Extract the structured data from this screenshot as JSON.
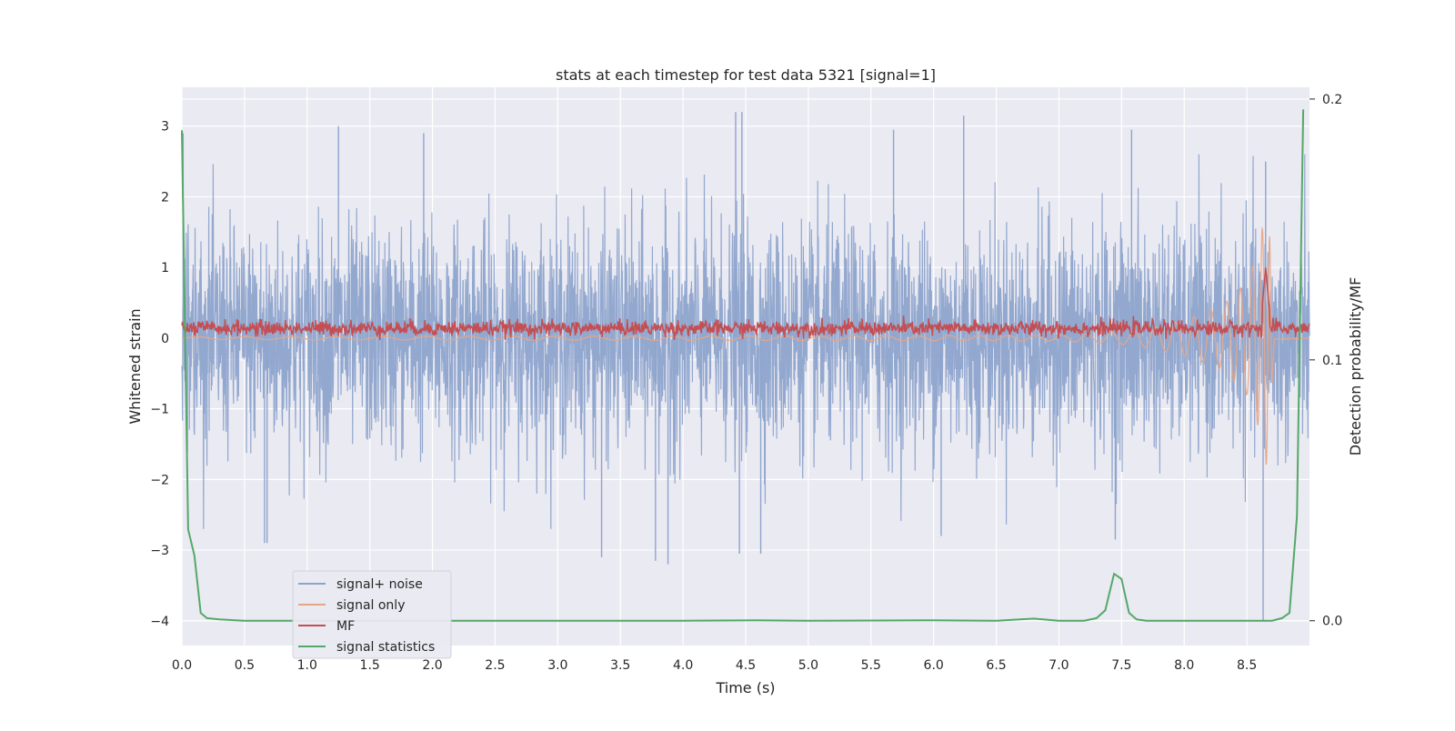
{
  "chart_data": {
    "type": "line",
    "title": "stats at each timestep for test data 5321 [signal=1]",
    "xlabel": "Time (s)",
    "ylabel": "Whitened strain",
    "y2label": "Detection probability/MF",
    "xlim": [
      0,
      9
    ],
    "ylim": [
      -4.35,
      3.55
    ],
    "y2lim": [
      -0.0095,
      0.2045
    ],
    "xticks": [
      "0.0",
      "0.5",
      "1.0",
      "1.5",
      "2.0",
      "2.5",
      "3.0",
      "3.5",
      "4.0",
      "4.5",
      "5.0",
      "5.5",
      "6.0",
      "6.5",
      "7.0",
      "7.5",
      "8.0",
      "8.5"
    ],
    "yticks": [
      "3",
      "2",
      "1",
      "0",
      "−1",
      "−2",
      "−3",
      "−4"
    ],
    "y2ticks": [
      "0.2",
      "0.1",
      "0.0"
    ],
    "grid": true,
    "legend_position": "lower-left",
    "colors": {
      "noise": "#8ea4cc",
      "signal": "#e8a584",
      "mf": "#c44e52",
      "stats": "#55a868",
      "background": "#eaeaf2"
    },
    "series": [
      {
        "name": "signal+ noise",
        "axis": "left",
        "description": "whitened strain noise, amplitude roughly +/-2 with spikes to +/-3.2",
        "peaks_x": [
          0.01,
          0.66,
          0.68,
          1.25,
          1.93,
          3.35,
          3.78,
          3.88,
          4.42,
          4.45,
          4.47,
          4.62,
          5.68,
          6.06,
          6.24,
          7.45,
          7.58,
          8.63,
          8.65
        ],
        "peaks_y": [
          2.9,
          -2.9,
          -2.9,
          3.0,
          2.9,
          -3.1,
          -3.15,
          -3.2,
          3.2,
          -3.05,
          3.2,
          -3.05,
          2.95,
          -2.8,
          3.15,
          -2.85,
          2.95,
          -4.0,
          2.5
        ]
      },
      {
        "name": "signal only",
        "axis": "left",
        "description": "chirp signal growing in amplitude near merger",
        "x": [
          0.0,
          7.0,
          7.6,
          8.0,
          8.3,
          8.5,
          8.6,
          8.65,
          8.68,
          8.72,
          9.0
        ],
        "envelope": [
          0.02,
          0.04,
          0.1,
          0.25,
          0.45,
          0.8,
          1.3,
          1.85,
          1.5,
          0.02,
          0.0
        ]
      },
      {
        "name": "MF",
        "axis": "left",
        "description": "matched filter output fluctuating around 0.1-0.2",
        "mean": 0.14,
        "spread": 0.12,
        "peak_x": 8.65,
        "peak_y": 1.0
      },
      {
        "name": "signal statistics",
        "axis": "right",
        "x": [
          0.0,
          0.05,
          0.1,
          0.15,
          0.2,
          0.3,
          0.5,
          1.0,
          2.0,
          3.0,
          4.0,
          4.6,
          5.0,
          6.0,
          6.5,
          6.8,
          7.0,
          7.2,
          7.3,
          7.37,
          7.44,
          7.5,
          7.56,
          7.62,
          7.7,
          8.0,
          8.5,
          8.7,
          8.78,
          8.84,
          8.9,
          8.95
        ],
        "y": [
          0.188,
          0.035,
          0.025,
          0.003,
          0.001,
          0.0005,
          0.0,
          0.0,
          0.0,
          0.0,
          0.0,
          0.0002,
          0.0,
          0.0002,
          0.0,
          0.0008,
          0.0,
          0.0,
          0.001,
          0.004,
          0.018,
          0.016,
          0.003,
          0.0005,
          0.0,
          0.0,
          0.0,
          0.0,
          0.001,
          0.003,
          0.04,
          0.196
        ]
      }
    ]
  }
}
